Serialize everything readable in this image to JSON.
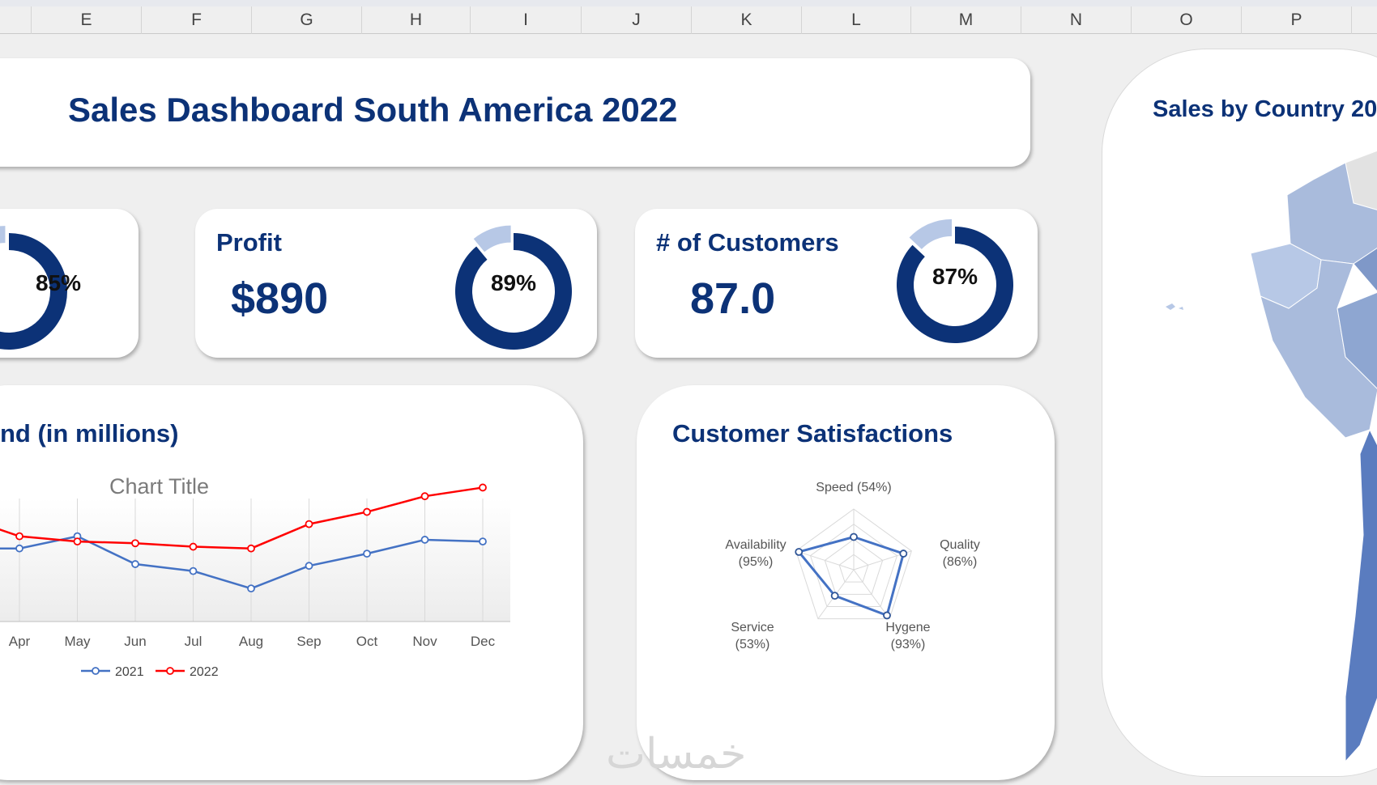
{
  "columns": [
    "E",
    "F",
    "G",
    "H",
    "I",
    "J",
    "K",
    "L",
    "M",
    "N",
    "O",
    "P"
  ],
  "dashboard": {
    "title": "Sales Dashboard South America 2022"
  },
  "kpis": [
    {
      "label": "",
      "value": "",
      "percent_label": "85%",
      "percent": 85
    },
    {
      "label": "Profit",
      "value": "$890",
      "percent_label": "89%",
      "percent": 89
    },
    {
      "label": "# of Customers",
      "value": "87.0",
      "percent_label": "87%",
      "percent": 87
    }
  ],
  "colors": {
    "navy": "#0c3277",
    "light_blue": "#b7c8e6",
    "series_2021": "#4472c4",
    "series_2022": "#ff0000"
  },
  "trend": {
    "title": "nd (in millions)",
    "chart_title": "Chart Title"
  },
  "satisfaction": {
    "title": "Customer Satisfactions"
  },
  "map": {
    "title": "Sales by Country 2022"
  },
  "watermark": "خمسات",
  "chart_data": [
    {
      "type": "line",
      "title": "Chart Title",
      "categories": [
        "Apr",
        "May",
        "Jun",
        "Jul",
        "Aug",
        "Sep",
        "Oct",
        "Nov",
        "Dec"
      ],
      "series": [
        {
          "name": "2021",
          "values": [
            7.2,
            7.9,
            6.3,
            5.9,
            4.9,
            6.2,
            6.9,
            7.7,
            7.6
          ]
        },
        {
          "name": "2022",
          "values": [
            7.9,
            7.6,
            7.5,
            7.3,
            7.2,
            8.6,
            9.3,
            10.2,
            10.7
          ]
        }
      ],
      "ylim": [
        3,
        12
      ],
      "grid": "vertical",
      "legend": "bottom"
    },
    {
      "type": "radar",
      "axes": [
        {
          "label": "Speed (54%)",
          "value": 54
        },
        {
          "label": "Quality (86%)",
          "value": 86
        },
        {
          "label": "Hygene (93%)",
          "value": 93
        },
        {
          "label": "Service (53%)",
          "value": 53
        },
        {
          "label": "Availability (95%)",
          "value": 95
        }
      ],
      "range": [
        0,
        100
      ]
    }
  ]
}
